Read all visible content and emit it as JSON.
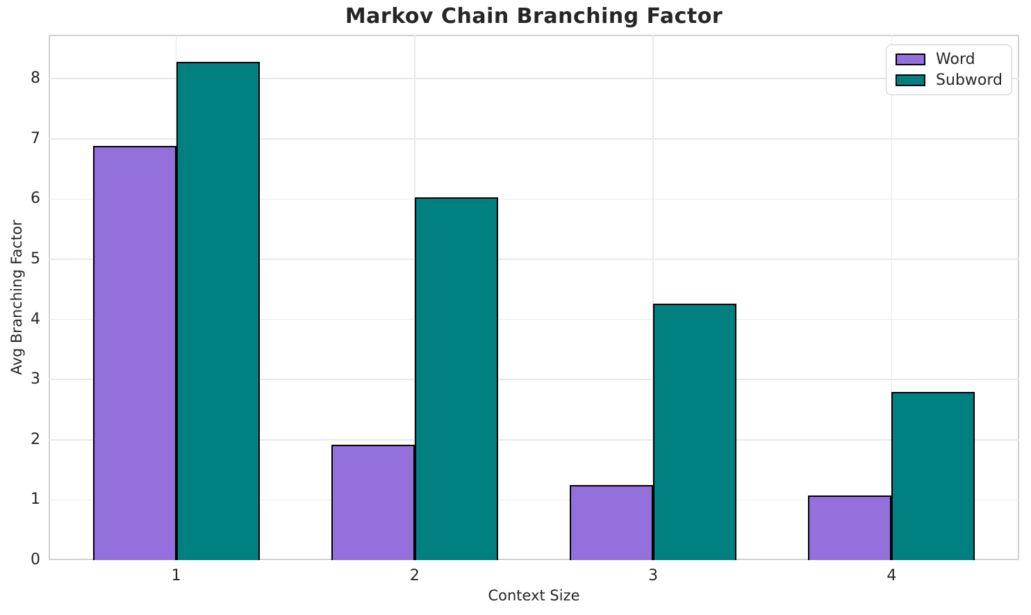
{
  "chart_data": {
    "type": "bar",
    "title": "Markov Chain Branching Factor",
    "xlabel": "Context Size",
    "ylabel": "Avg Branching Factor",
    "categories": [
      "1",
      "2",
      "3",
      "4"
    ],
    "series": [
      {
        "name": "Word",
        "color": "#9370DB",
        "values": [
          6.88,
          1.92,
          1.25,
          1.07
        ]
      },
      {
        "name": "Subword",
        "color": "#008080",
        "values": [
          8.28,
          6.03,
          4.26,
          2.79
        ]
      }
    ],
    "yticks": [
      0,
      1,
      2,
      3,
      4,
      5,
      6,
      7,
      8
    ],
    "ylim": [
      0,
      8.73
    ],
    "bar_width": 0.35,
    "bar_edge_color": "#000000",
    "grid": true,
    "legend_position": "upper right"
  },
  "style": {
    "grid_color": "#e8e8e8",
    "spine_color": "#d0d0d0",
    "text_color": "#262626"
  }
}
